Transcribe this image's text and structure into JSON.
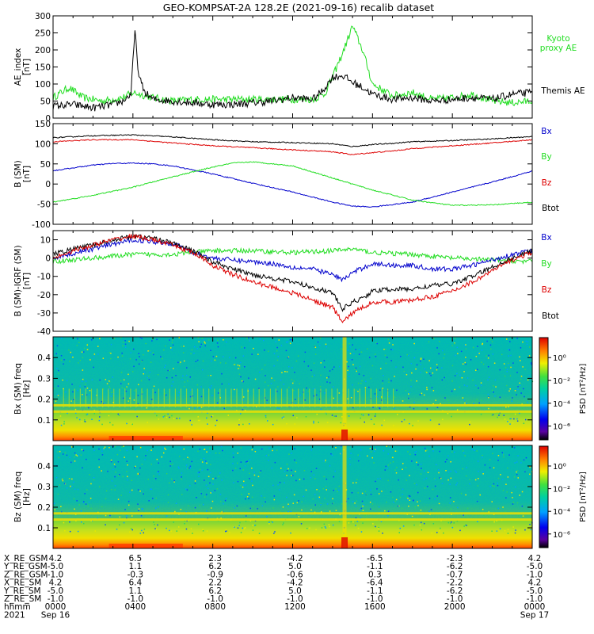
{
  "title": "GEO-KOMPSAT-2A 128.2E (2021-09-16) recalib dataset",
  "colors": {
    "black": "#000000",
    "red": "#dd0000",
    "blue": "#0000cc",
    "green": "#22dd22"
  },
  "chart_data": [
    {
      "type": "line",
      "ylabel": "AE_index [nT]",
      "ylim": [
        0,
        300
      ],
      "yticks": [
        0,
        50,
        100,
        150,
        200,
        250,
        300
      ],
      "xlim": [
        0,
        24
      ],
      "series": [
        {
          "name": "Kyoto proxy AE",
          "color": "#22dd22",
          "x": [
            0,
            0.8,
            1.5,
            2.5,
            3.5,
            4,
            5,
            6,
            7,
            8,
            9,
            10,
            11,
            12,
            13,
            13.6,
            14,
            14.5,
            15,
            15.5,
            16,
            17,
            18,
            19,
            20,
            21,
            22,
            23,
            24
          ],
          "y": [
            60,
            90,
            60,
            50,
            60,
            75,
            60,
            50,
            55,
            55,
            55,
            55,
            55,
            55,
            55,
            70,
            120,
            190,
            270,
            200,
            100,
            65,
            75,
            55,
            60,
            70,
            50,
            45,
            50
          ]
        },
        {
          "name": "Themis AE",
          "color": "#000000",
          "x": [
            0,
            1,
            2,
            3,
            3.5,
            3.9,
            4.1,
            4.3,
            4.6,
            5,
            6,
            7,
            8,
            9,
            10,
            11,
            12,
            13,
            13.5,
            14,
            14.5,
            15,
            15.5,
            16,
            17,
            18,
            19,
            20,
            21,
            22,
            23,
            24
          ],
          "y": [
            35,
            40,
            30,
            40,
            50,
            70,
            255,
            120,
            75,
            55,
            50,
            45,
            40,
            40,
            45,
            50,
            60,
            55,
            80,
            120,
            125,
            105,
            90,
            70,
            55,
            60,
            50,
            55,
            60,
            55,
            70,
            75
          ]
        }
      ],
      "legend": [
        "Kyoto proxy AE",
        "Themis AE"
      ]
    },
    {
      "type": "line",
      "ylabel": "B (SM) [nT]",
      "ylim": [
        -100,
        150
      ],
      "yticks": [
        -100,
        -50,
        0,
        50,
        100,
        150
      ],
      "xlim": [
        0,
        24
      ],
      "series": [
        {
          "name": "Btot",
          "color": "#000000",
          "x": [
            0,
            2,
            4,
            6,
            8,
            10,
            12,
            14,
            15,
            16,
            17,
            18,
            20,
            22,
            24
          ],
          "y": [
            115,
            120,
            122,
            117,
            110,
            105,
            103,
            100,
            93,
            98,
            101,
            105,
            108,
            112,
            118
          ]
        },
        {
          "name": "Bz",
          "color": "#dd0000",
          "x": [
            0,
            2,
            4,
            6,
            8,
            10,
            12,
            14,
            15,
            16,
            17,
            18,
            20,
            22,
            24
          ],
          "y": [
            105,
            110,
            110,
            102,
            95,
            90,
            85,
            80,
            73,
            78,
            82,
            88,
            95,
            102,
            110
          ]
        },
        {
          "name": "Bx",
          "color": "#0000cc",
          "x": [
            0,
            1,
            2,
            3,
            4,
            5,
            6,
            8,
            10,
            12,
            14,
            15,
            16,
            18,
            20,
            22,
            24
          ],
          "y": [
            33,
            40,
            47,
            51,
            52,
            50,
            45,
            25,
            2,
            -20,
            -45,
            -55,
            -57,
            -45,
            -20,
            5,
            32
          ]
        },
        {
          "name": "By",
          "color": "#22dd22",
          "x": [
            0,
            2,
            4,
            6,
            8,
            9,
            10,
            12,
            14,
            16,
            18,
            20,
            22,
            24
          ],
          "y": [
            -45,
            -28,
            -8,
            18,
            42,
            52,
            55,
            45,
            15,
            -15,
            -40,
            -53,
            -52,
            -45
          ]
        }
      ],
      "legend": [
        "Bx",
        "By",
        "Bz",
        "Btot"
      ]
    },
    {
      "type": "line",
      "ylabel": "B (SM)-IGRF (SM) [nT]",
      "ylim": [
        -40,
        15
      ],
      "yticks": [
        -40,
        -30,
        -20,
        -10,
        0,
        10
      ],
      "xlim": [
        0,
        24
      ],
      "series": [
        {
          "name": "By",
          "color": "#22dd22",
          "x": [
            0,
            2,
            4,
            6,
            8,
            10,
            12,
            14,
            15,
            16,
            18,
            20,
            22,
            24
          ],
          "y": [
            -2,
            0,
            2,
            2,
            4,
            4,
            3,
            4,
            5,
            3,
            2,
            0,
            -1,
            -2
          ]
        },
        {
          "name": "Bx",
          "color": "#0000cc",
          "x": [
            0,
            2,
            4,
            6,
            7,
            8,
            9,
            10,
            11,
            12,
            13,
            14,
            14.5,
            15,
            16,
            17,
            18,
            19,
            20,
            21,
            22,
            23,
            24
          ],
          "y": [
            0,
            5,
            10,
            8,
            3,
            0,
            -1,
            -2,
            -3,
            -5,
            -6,
            -9,
            -12,
            -8,
            -3,
            -4,
            -4,
            -6,
            -6,
            -4,
            -1,
            2,
            4
          ]
        },
        {
          "name": "Btot",
          "color": "#000000",
          "x": [
            0,
            1,
            2,
            3,
            4,
            5,
            6,
            7,
            8,
            9,
            10,
            11,
            12,
            13,
            14,
            14.5,
            15,
            15.5,
            16,
            17,
            18,
            19,
            20,
            21,
            22,
            23,
            24
          ],
          "y": [
            2,
            5,
            7,
            10,
            12,
            11,
            8,
            4,
            -2,
            -6,
            -9,
            -11,
            -13,
            -16,
            -19,
            -28,
            -24,
            -22,
            -18,
            -17,
            -17,
            -15,
            -14,
            -10,
            -5,
            0,
            4
          ]
        },
        {
          "name": "Bz",
          "color": "#dd0000",
          "x": [
            0,
            1,
            2,
            3,
            4,
            5,
            6,
            7,
            8,
            9,
            10,
            11,
            12,
            13,
            14,
            14.5,
            15,
            15.5,
            16,
            17,
            18,
            19,
            20,
            21,
            22,
            23,
            24
          ],
          "y": [
            0,
            4,
            7,
            10,
            12,
            10,
            7,
            3,
            -4,
            -9,
            -13,
            -16,
            -19,
            -23,
            -27,
            -35,
            -30,
            -27,
            -24,
            -24,
            -23,
            -21,
            -18,
            -13,
            -7,
            -1,
            3
          ]
        }
      ],
      "legend": [
        "Bx",
        "By",
        "Bz",
        "Btot"
      ]
    },
    {
      "type": "heatmap",
      "ylabel": "Bx (SM) freq [Hz]",
      "ylim": [
        0,
        0.5
      ],
      "yticks": [
        0.1,
        0.2,
        0.3,
        0.4
      ],
      "colorbar": {
        "label": "PSD [nT²/Hz]",
        "ticks": [
          "10⁰",
          "10⁻²",
          "10⁻⁴",
          "10⁻⁶"
        ]
      }
    },
    {
      "type": "heatmap",
      "ylabel": "Bz (SM) freq [Hz]",
      "ylim": [
        0,
        0.5
      ],
      "yticks": [
        0.1,
        0.2,
        0.3,
        0.4
      ],
      "colorbar": {
        "label": "PSD [nT²/Hz]",
        "ticks": [
          "10⁰",
          "10⁻²",
          "10⁻⁴",
          "10⁻⁶"
        ]
      }
    }
  ],
  "xaxis_table": {
    "row_labels": [
      "X_RE_GSM",
      "Y_RE_GSM",
      "Z_RE_GSM",
      "X_RE_SM",
      "Y_RE_SM",
      "Z_RE_SM",
      "hhmm",
      "2021"
    ],
    "columns": [
      [
        "4.2",
        "-5.0",
        "-1.0",
        "4.2",
        "-5.0",
        "-1.0",
        "0000",
        "Sep 16"
      ],
      [
        "6.5",
        "1.1",
        "-0.3",
        "6.4",
        "1.1",
        "-1.0",
        "0400",
        ""
      ],
      [
        "2.3",
        "6.2",
        "-0.9",
        "2.2",
        "6.2",
        "-1.0",
        "0800",
        ""
      ],
      [
        "-4.2",
        "5.0",
        "-0.6",
        "-4.2",
        "5.0",
        "-1.0",
        "1200",
        ""
      ],
      [
        "-6.5",
        "-1.1",
        "0.3",
        "-6.4",
        "-1.1",
        "-1.0",
        "1600",
        ""
      ],
      [
        "-2.3",
        "-6.2",
        "-0.7",
        "-2.2",
        "-6.2",
        "-1.0",
        "2000",
        ""
      ],
      [
        "4.2",
        "-5.0",
        "-1.0",
        "4.2",
        "-5.0",
        "-1.0",
        "0000",
        "Sep 17"
      ]
    ]
  }
}
